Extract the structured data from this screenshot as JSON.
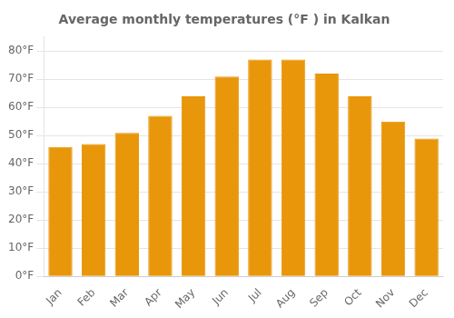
{
  "chart_data": {
    "type": "bar",
    "title": "Average monthly temperatures (°F ) in Kalkan",
    "categories": [
      "Jan",
      "Feb",
      "Mar",
      "Apr",
      "May",
      "Jun",
      "Jul",
      "Aug",
      "Sep",
      "Oct",
      "Nov",
      "Dec"
    ],
    "values": [
      46,
      47,
      51,
      57,
      64,
      71,
      77,
      77,
      72,
      64,
      55,
      49
    ],
    "color": "#E8960A",
    "ylim": [
      0,
      85
    ],
    "yticks": [
      {
        "value": 0,
        "label": "0°F"
      },
      {
        "value": 10,
        "label": "10°F"
      },
      {
        "value": 20,
        "label": "20°F"
      },
      {
        "value": 30,
        "label": "30°F"
      },
      {
        "value": 40,
        "label": "40°F"
      },
      {
        "value": 50,
        "label": "50°F"
      },
      {
        "value": 60,
        "label": "60°F"
      },
      {
        "value": 70,
        "label": "70°F"
      },
      {
        "value": 80,
        "label": "80°F"
      }
    ],
    "grid": true
  }
}
